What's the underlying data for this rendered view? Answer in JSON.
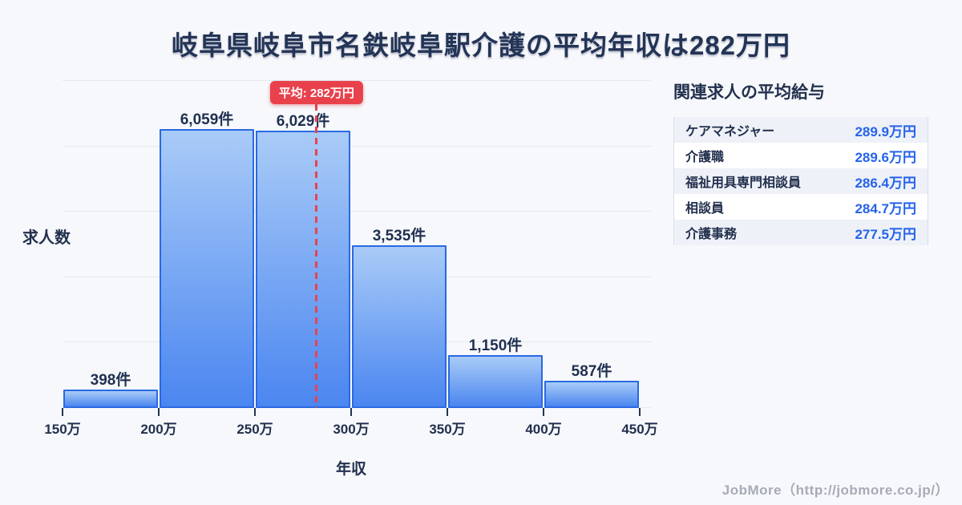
{
  "title": "岐阜県岐阜市名鉄岐阜駅介護の平均年収は282万円",
  "chart_data": {
    "type": "bar",
    "title": "岐阜県岐阜市名鉄岐阜駅介護の平均年収は282万円",
    "xlabel": "年収",
    "ylabel": "求人数",
    "x_range": [
      150,
      450
    ],
    "x_unit": "万",
    "x_ticks": [
      "150万",
      "200万",
      "250万",
      "300万",
      "350万",
      "400万",
      "450万"
    ],
    "categories": [
      "150万-200万",
      "200万-250万",
      "250万-300万",
      "300万-350万",
      "350万-400万",
      "400万-450万"
    ],
    "values": [
      398,
      6059,
      6029,
      3535,
      1150,
      587
    ],
    "bar_labels": [
      "398件",
      "6,059件",
      "6,029件",
      "3,535件",
      "1,150件",
      "587件"
    ],
    "average_line": {
      "value": 282,
      "label": "平均: 282万円"
    },
    "ylim": [
      0,
      7000
    ],
    "grid": "horizontal",
    "legend": "none"
  },
  "side_panel": {
    "title": "関連求人の平均給与",
    "rows": [
      {
        "label": "ケアマネジャー",
        "value": "289.9万円"
      },
      {
        "label": "介護職",
        "value": "289.6万円"
      },
      {
        "label": "福祉用具専門相談員",
        "value": "286.4万円"
      },
      {
        "label": "相談員",
        "value": "284.7万円"
      },
      {
        "label": "介護事務",
        "value": "277.5万円"
      }
    ]
  },
  "footer": {
    "credit": "JobMore（http://jobmore.co.jp/）"
  },
  "colors": {
    "background": "#f7f8fb",
    "title_text": "#233456",
    "bar_fill_top": "#a9cbf7",
    "bar_fill_bottom": "#4b86f0",
    "bar_border": "#2a69e2",
    "average_accent": "#e8434e",
    "value_text": "#2563eb",
    "gridline": "#e4e8ef",
    "footer_text": "#a6abb6"
  }
}
